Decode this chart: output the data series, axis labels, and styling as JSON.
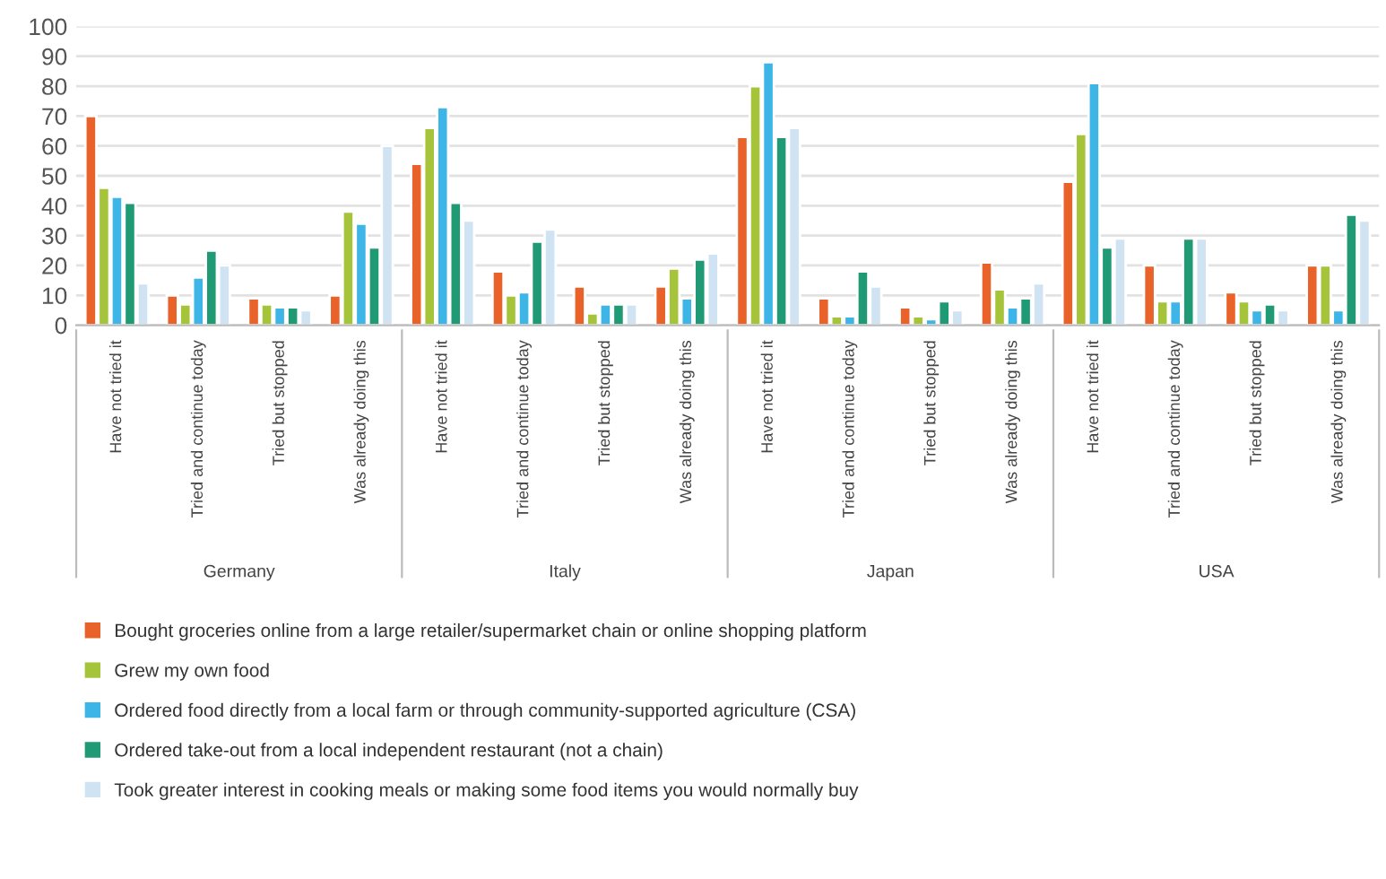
{
  "chart_data": {
    "type": "bar",
    "categories": [
      "Have not tried it",
      "Tried and continue today",
      "Tried but stopped",
      "Was already doing this",
      "Have not tried it",
      "Tried and continue today",
      "Tried but stopped",
      "Was already doing this",
      "Have not tried it",
      "Tried and continue today",
      "Tried but stopped",
      "Was already doing this",
      "Have not tried it",
      "Tried and continue today",
      "Tried but stopped",
      "Was already doing this"
    ],
    "series": [
      {
        "name": "Bought groceries online from a large retailer/supermarket chain or online shopping platform",
        "color": "#e8622a",
        "values": [
          70,
          10,
          9,
          10,
          54,
          18,
          13,
          13,
          63,
          9,
          6,
          21,
          48,
          20,
          11,
          20
        ]
      },
      {
        "name": "Grew my own food",
        "color": "#a5c43a",
        "values": [
          46,
          7,
          7,
          38,
          66,
          10,
          4,
          19,
          80,
          3,
          3,
          12,
          64,
          8,
          8,
          20
        ]
      },
      {
        "name": "Ordered food directly from a local farm or through community-supported agriculture (CSA)",
        "color": "#3db5e6",
        "values": [
          43,
          16,
          6,
          34,
          73,
          11,
          7,
          9,
          88,
          3,
          2,
          6,
          81,
          8,
          5,
          5
        ]
      },
      {
        "name": "Ordered take-out from a local independent restaurant (not a chain)",
        "color": "#1f9a74",
        "values": [
          41,
          25,
          6,
          26,
          41,
          28,
          7,
          22,
          63,
          18,
          8,
          9,
          26,
          29,
          7,
          37
        ]
      },
      {
        "name": "Took greater interest in cooking meals or making some food items you would normally buy",
        "color": "#cfe3f3",
        "values": [
          14,
          20,
          5,
          60,
          35,
          32,
          7,
          24,
          66,
          13,
          5,
          14,
          29,
          29,
          5,
          35
        ]
      }
    ],
    "annotations": [
      "Germany",
      "Italy",
      "Japan",
      "USA"
    ],
    "ylim": [
      0,
      100
    ],
    "yticks": [
      0,
      10,
      20,
      30,
      40,
      50,
      60,
      70,
      80,
      90,
      100
    ],
    "grid": "y",
    "legend": "bottom"
  }
}
